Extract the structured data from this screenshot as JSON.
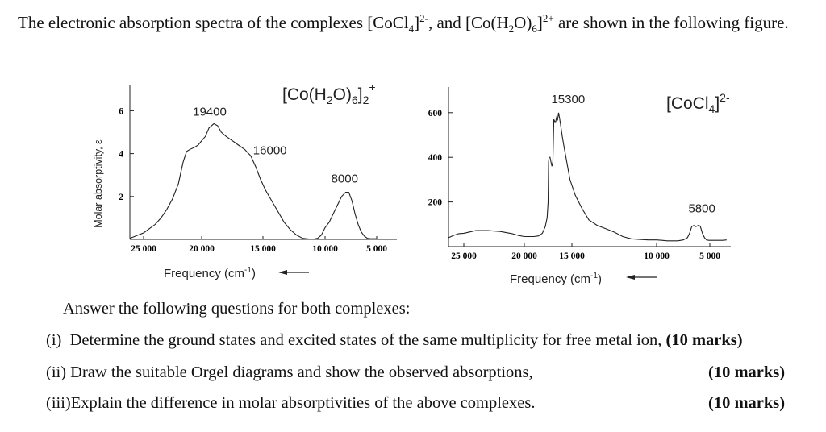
{
  "document": {
    "intro": {
      "part1": "The electronic absorption spectra of the complexes [CoCl",
      "sub1": "4",
      "part2": "]",
      "sup1": "2-",
      "part3": ", and [Co(H",
      "sub2": "2",
      "part4": "O)",
      "sub3": "6",
      "part5": "]",
      "sup2": "2+",
      "part6": " are shown in the following figure."
    },
    "questions_heading": "Answer the following questions for both complexes:",
    "questions": [
      {
        "label": "(i)",
        "text": "Determine the ground states and excited states of the same multiplicity for free metal ion,",
        "marks": "(10 marks)"
      },
      {
        "label": "(ii)",
        "text": "Draw the suitable Orgel diagrams and show the observed absorptions,",
        "marks": "(10 marks)"
      },
      {
        "label": "(iii)",
        "text": "Explain the difference in molar absorptivities of the above complexes.",
        "marks": "(10 marks)"
      }
    ]
  },
  "chart_data": [
    {
      "type": "line",
      "title": "[Co(H2O)6]2+",
      "title_display": {
        "main": "[Co(H",
        "sub1": "2",
        "mid": "O)",
        "sub2": "6",
        "end": "]",
        "sub3": "2",
        "sup": "+"
      },
      "xlabel": "Frequency (cm-1)",
      "xlabel_display": {
        "main": "Frequency (cm",
        "sup": "-1",
        "end": ")"
      },
      "xdirection_arrow": "left",
      "ylabel": "Molar absorptivity, ε",
      "xlim": [
        26200,
        3500
      ],
      "ylim": [
        0,
        7
      ],
      "xticks": [
        25000,
        20000,
        15000,
        10000,
        5000
      ],
      "xtick_labels": [
        "25 000",
        "20 000",
        "15 000",
        "10 000",
        "5 000"
      ],
      "yticks": [
        2,
        4,
        6
      ],
      "ytick_labels": [
        "2",
        "4",
        "6"
      ],
      "grid": false,
      "annotations": [
        {
          "text": "19400",
          "x": 19400,
          "y": 5.4
        },
        {
          "text": "16000",
          "x": 16000,
          "y": 3.9
        },
        {
          "text": "8000",
          "x": 8000,
          "y": 2.2
        }
      ],
      "series": [
        {
          "name": "[Co(H2O)6]2+",
          "x": [
            26200,
            25500,
            25000,
            24500,
            24000,
            23500,
            23000,
            22500,
            22000,
            21600,
            21300,
            21000,
            20600,
            20300,
            20000,
            19700,
            19400,
            19000,
            18700,
            18400,
            18000,
            17500,
            17000,
            16500,
            16000,
            15600,
            15200,
            14800,
            14300,
            13800,
            13300,
            12800,
            12300,
            11800,
            11300,
            10900,
            10600,
            10300,
            10000,
            9600,
            9200,
            8800,
            8400,
            8000,
            7700,
            7400,
            7100,
            6800,
            6500,
            6200,
            5900,
            5600,
            5300,
            5000
          ],
          "y": [
            0.05,
            0.2,
            0.3,
            0.5,
            0.7,
            1.0,
            1.4,
            1.9,
            2.6,
            3.6,
            4.1,
            4.2,
            4.3,
            4.4,
            4.6,
            4.8,
            5.2,
            5.4,
            5.3,
            5.0,
            4.8,
            4.6,
            4.4,
            4.2,
            3.9,
            3.4,
            2.8,
            2.3,
            1.8,
            1.3,
            0.8,
            0.45,
            0.2,
            0.05,
            0.02,
            0.02,
            0.05,
            0.2,
            0.55,
            0.8,
            1.2,
            1.6,
            2.0,
            2.2,
            2.2,
            1.8,
            1.2,
            0.7,
            0.35,
            0.15,
            0.05,
            0.03,
            0.03,
            0.03
          ]
        }
      ]
    },
    {
      "type": "line",
      "title": "[CoCl4]2-",
      "title_display": {
        "main": "[CoCl",
        "sub1": "4",
        "end": "]",
        "sup": "2-"
      },
      "xlabel": "Frequency (cm-1)",
      "xlabel_display": {
        "main": "Frequency (cm",
        "sup": "-1",
        "end": ")"
      },
      "xdirection_arrow": "left",
      "ylabel": "",
      "xlim": [
        26200,
        3500
      ],
      "ylim": [
        0,
        700
      ],
      "xticks": [
        25000,
        20000,
        15000,
        10000,
        5000
      ],
      "xtick_labels": [
        "25 000",
        "20 000",
        "15 000",
        "10 000",
        "5 000"
      ],
      "yticks": [
        200,
        400,
        600
      ],
      "ytick_labels": [
        "200",
        "400",
        "600"
      ],
      "grid": false,
      "annotations": [
        {
          "text": "15300",
          "x": 15300,
          "y": 600
        },
        {
          "text": "5800",
          "x": 5800,
          "y": 95
        }
      ],
      "series": [
        {
          "name": "[CoCl4]2-",
          "x": [
            26200,
            25800,
            25400,
            25000,
            24000,
            23000,
            22000,
            21000,
            20500,
            20000,
            19500,
            19000,
            18500,
            18100,
            17800,
            17600,
            17500,
            17450,
            17400,
            17300,
            17200,
            17100,
            17000,
            16900,
            16800,
            16700,
            16600,
            16500,
            16400,
            16300,
            16200,
            16100,
            16000,
            15800,
            15500,
            15200,
            14800,
            14400,
            14000,
            13500,
            13000,
            12500,
            12000,
            11500,
            11000,
            10500,
            10000,
            9500,
            9000,
            8500,
            8000,
            7500,
            7100,
            6900,
            6700,
            6500,
            6300,
            6100,
            5900,
            5700,
            5500,
            5300,
            5100,
            4800,
            4400,
            4000,
            3700
          ],
          "y": [
            40,
            50,
            58,
            60,
            72,
            72,
            68,
            58,
            50,
            45,
            45,
            45,
            48,
            60,
            90,
            130,
            200,
            380,
            400,
            400,
            380,
            360,
            380,
            570,
            560,
            560,
            580,
            570,
            600,
            575,
            550,
            520,
            490,
            440,
            370,
            300,
            230,
            170,
            120,
            95,
            80,
            65,
            45,
            35,
            32,
            30,
            30,
            28,
            26,
            26,
            26,
            30,
            40,
            60,
            90,
            95,
            90,
            95,
            92,
            60,
            40,
            30,
            28,
            28,
            28,
            28,
            30
          ]
        }
      ]
    }
  ]
}
